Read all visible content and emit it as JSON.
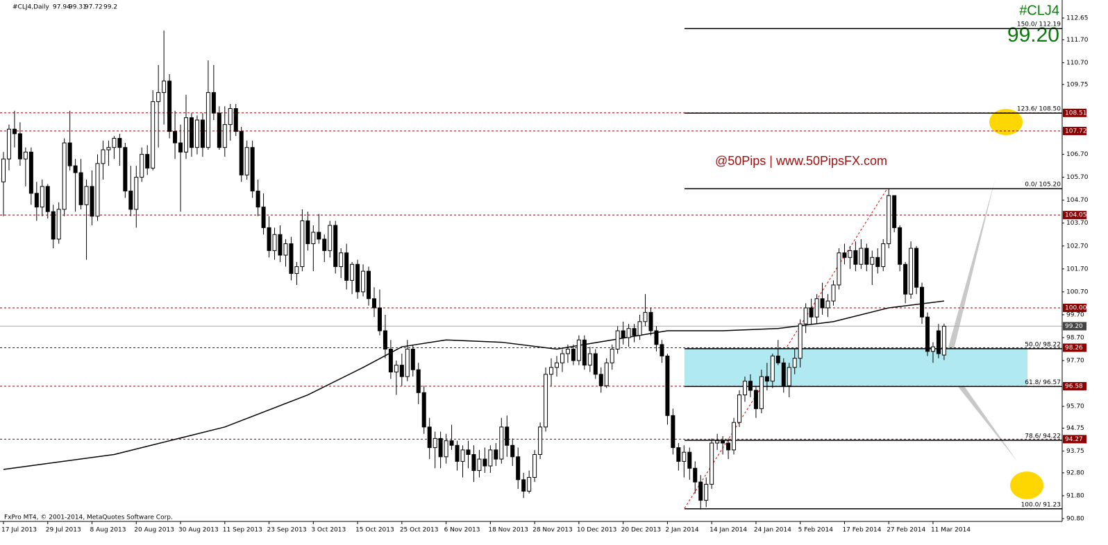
{
  "chart_data": {
    "type": "candlestick",
    "title": "#CLJ4,Daily",
    "symbol": "#CLJ4",
    "last_price": {
      "value": 99.2,
      "label": "99.20"
    },
    "watermark": "@50Pips | www.50PipsFX.com",
    "copyright": "FxPro MT4, © 2001-2014, MetaQuotes Software Corp.",
    "up_color": "#ffffff",
    "down_color": "#000000",
    "ylim": [
      90.8,
      112.65
    ],
    "yticks": [
      {
        "value": 112.65,
        "label": "112.65"
      },
      {
        "value": 111.7,
        "label": "111.70"
      },
      {
        "value": 110.7,
        "label": "110.70"
      },
      {
        "value": 109.75,
        "label": "109.75"
      },
      {
        "value": 106.7,
        "label": "106.70"
      },
      {
        "value": 105.7,
        "label": "105.70"
      },
      {
        "value": 104.7,
        "label": "104.70"
      },
      {
        "value": 103.7,
        "label": "103.70"
      },
      {
        "value": 102.7,
        "label": "102.70"
      },
      {
        "value": 101.7,
        "label": "101.70"
      },
      {
        "value": 100.7,
        "label": "100.70"
      },
      {
        "value": 99.7,
        "label": "99.70"
      },
      {
        "value": 98.7,
        "label": "98.70"
      },
      {
        "value": 97.7,
        "label": "97.70"
      },
      {
        "value": 95.7,
        "label": "95.70"
      },
      {
        "value": 94.75,
        "label": "94.75"
      },
      {
        "value": 93.75,
        "label": "93.75"
      },
      {
        "value": 92.8,
        "label": "92.80"
      },
      {
        "value": 91.8,
        "label": "91.80"
      },
      {
        "value": 90.8,
        "label": "90.80"
      }
    ],
    "xticks": [
      {
        "value": 0,
        "label": "17 Jul 2013"
      },
      {
        "value": 8,
        "label": "29 Jul 2013"
      },
      {
        "value": 16,
        "label": "8 Aug 2013"
      },
      {
        "value": 24,
        "label": "20 Aug 2013"
      },
      {
        "value": 32,
        "label": "30 Aug 2013"
      },
      {
        "value": 40,
        "label": "11 Sep 2013"
      },
      {
        "value": 48,
        "label": "23 Sep 2013"
      },
      {
        "value": 56,
        "label": "3 Oct 2013"
      },
      {
        "value": 64,
        "label": "15 Oct 2013"
      },
      {
        "value": 72,
        "label": "25 Oct 2013"
      },
      {
        "value": 80,
        "label": "6 Nov 2013"
      },
      {
        "value": 88,
        "label": "18 Nov 2013"
      },
      {
        "value": 96,
        "label": "28 Nov 2013"
      },
      {
        "value": 104,
        "label": "10 Dec 2013"
      },
      {
        "value": 112,
        "label": "20 Dec 2013"
      },
      {
        "value": 120,
        "label": "2 Jan 2014"
      },
      {
        "value": 128,
        "label": "14 Jan 2014"
      },
      {
        "value": 136,
        "label": "24 Jan 2014"
      },
      {
        "value": 144,
        "label": "5 Feb 2014"
      },
      {
        "value": 152,
        "label": "17 Feb 2014"
      },
      {
        "value": 160,
        "label": "27 Feb 2014"
      },
      {
        "value": 168,
        "label": "11 Mar 2014"
      }
    ],
    "ohlc": [
      [
        105.5,
        106.8,
        104.0,
        106.5
      ],
      [
        106.5,
        108.0,
        106.0,
        107.8
      ],
      [
        107.8,
        108.6,
        107.0,
        107.6
      ],
      [
        107.6,
        108.1,
        106.2,
        106.5
      ],
      [
        106.5,
        107.0,
        105.3,
        106.8
      ],
      [
        106.8,
        107.0,
        104.5,
        105.0
      ],
      [
        105.0,
        105.5,
        103.8,
        104.4
      ],
      [
        104.4,
        105.6,
        104.0,
        105.3
      ],
      [
        105.3,
        105.4,
        103.9,
        104.2
      ],
      [
        104.2,
        104.5,
        102.6,
        103.0
      ],
      [
        103.0,
        104.6,
        102.8,
        104.3
      ],
      [
        104.3,
        107.4,
        104.0,
        107.2
      ],
      [
        107.2,
        108.6,
        106.0,
        106.2
      ],
      [
        106.2,
        106.5,
        104.2,
        105.9
      ],
      [
        105.9,
        106.5,
        104.3,
        104.5
      ],
      [
        104.5,
        105.6,
        102.1,
        105.3
      ],
      [
        105.3,
        106.0,
        103.6,
        104.0
      ],
      [
        104.0,
        106.7,
        103.8,
        106.3
      ],
      [
        106.3,
        107.3,
        105.6,
        106.9
      ],
      [
        106.9,
        107.3,
        106.2,
        107.0
      ],
      [
        107.0,
        107.5,
        106.5,
        107.4
      ],
      [
        107.4,
        107.6,
        106.2,
        107.0
      ],
      [
        107.0,
        107.2,
        104.8,
        105.1
      ],
      [
        105.1,
        106.2,
        104.0,
        104.3
      ],
      [
        104.3,
        106.2,
        103.5,
        105.7
      ],
      [
        105.7,
        107.0,
        105.5,
        106.7
      ],
      [
        106.7,
        107.1,
        105.8,
        106.1
      ],
      [
        106.1,
        109.5,
        106.0,
        109.0
      ],
      [
        109.0,
        110.6,
        107.0,
        109.4
      ],
      [
        109.4,
        112.1,
        108.0,
        109.9
      ],
      [
        109.9,
        110.2,
        107.4,
        107.7
      ],
      [
        107.7,
        108.6,
        106.5,
        107.2
      ],
      [
        107.2,
        108.0,
        104.2,
        106.8
      ],
      [
        106.8,
        109.3,
        106.5,
        108.3
      ],
      [
        108.3,
        108.5,
        106.6,
        107.0
      ],
      [
        107.0,
        108.4,
        106.7,
        108.2
      ],
      [
        108.2,
        108.5,
        106.6,
        107.0
      ],
      [
        107.0,
        110.8,
        106.9,
        109.4
      ],
      [
        109.4,
        110.6,
        108.2,
        108.5
      ],
      [
        108.5,
        108.8,
        106.9,
        107.0
      ],
      [
        107.0,
        108.8,
        106.6,
        108.0
      ],
      [
        108.0,
        108.9,
        107.3,
        108.7
      ],
      [
        108.7,
        108.9,
        107.5,
        107.7
      ],
      [
        107.7,
        107.9,
        105.5,
        105.8
      ],
      [
        105.8,
        107.3,
        105.6,
        107.0
      ],
      [
        107.0,
        107.3,
        104.8,
        105.1
      ],
      [
        105.1,
        105.6,
        104.0,
        104.4
      ],
      [
        104.4,
        105.0,
        103.2,
        103.5
      ],
      [
        103.5,
        104.0,
        102.2,
        102.5
      ],
      [
        102.5,
        103.5,
        102.1,
        103.2
      ],
      [
        103.2,
        103.6,
        102.0,
        102.3
      ],
      [
        102.3,
        103.0,
        101.8,
        102.8
      ],
      [
        102.8,
        103.1,
        101.2,
        101.5
      ],
      [
        101.5,
        102.0,
        101.0,
        101.8
      ],
      [
        101.8,
        104.3,
        101.6,
        103.8
      ],
      [
        103.8,
        104.2,
        102.5,
        102.8
      ],
      [
        102.8,
        103.6,
        101.6,
        103.3
      ],
      [
        103.3,
        104.1,
        102.8,
        103.0
      ],
      [
        103.0,
        103.2,
        102.0,
        102.5
      ],
      [
        102.5,
        103.8,
        102.2,
        103.6
      ],
      [
        103.6,
        103.8,
        101.5,
        101.8
      ],
      [
        101.8,
        102.6,
        101.3,
        102.4
      ],
      [
        102.4,
        102.8,
        100.8,
        101.2
      ],
      [
        101.2,
        102.0,
        100.6,
        101.9
      ],
      [
        101.9,
        102.1,
        100.4,
        100.7
      ],
      [
        100.7,
        101.9,
        100.5,
        101.6
      ],
      [
        101.6,
        101.8,
        100.1,
        100.4
      ],
      [
        100.4,
        100.9,
        99.6,
        100.0
      ],
      [
        100.0,
        100.8,
        98.8,
        99.0
      ],
      [
        99.0,
        99.7,
        97.8,
        98.2
      ],
      [
        98.2,
        98.6,
        96.9,
        97.2
      ],
      [
        97.2,
        97.7,
        96.2,
        97.5
      ],
      [
        97.5,
        98.0,
        96.6,
        97.0
      ],
      [
        97.0,
        98.6,
        96.8,
        98.2
      ],
      [
        98.2,
        98.4,
        97.0,
        97.3
      ],
      [
        97.3,
        97.6,
        95.8,
        96.3
      ],
      [
        96.3,
        96.6,
        94.5,
        94.8
      ],
      [
        94.8,
        95.2,
        93.4,
        93.9
      ],
      [
        93.9,
        94.6,
        93.0,
        94.3
      ],
      [
        94.3,
        94.6,
        93.0,
        93.5
      ],
      [
        93.5,
        94.5,
        93.2,
        94.2
      ],
      [
        94.2,
        94.9,
        93.8,
        94.0
      ],
      [
        94.0,
        94.2,
        92.9,
        93.3
      ],
      [
        93.3,
        94.0,
        92.6,
        93.8
      ],
      [
        93.8,
        94.2,
        93.0,
        93.6
      ],
      [
        93.6,
        94.0,
        92.4,
        92.9
      ],
      [
        92.9,
        93.8,
        92.6,
        93.4
      ],
      [
        93.4,
        93.9,
        92.8,
        93.1
      ],
      [
        93.1,
        94.0,
        92.8,
        93.8
      ],
      [
        93.8,
        94.1,
        93.1,
        93.4
      ],
      [
        93.4,
        95.2,
        93.2,
        94.8
      ],
      [
        94.8,
        95.3,
        93.5,
        94.0
      ],
      [
        94.0,
        94.3,
        93.1,
        93.5
      ],
      [
        93.5,
        93.9,
        92.1,
        92.5
      ],
      [
        92.5,
        92.8,
        91.7,
        92.0
      ],
      [
        92.0,
        92.9,
        91.9,
        92.6
      ],
      [
        92.6,
        93.8,
        92.4,
        93.6
      ],
      [
        93.6,
        95.0,
        93.4,
        94.8
      ],
      [
        94.8,
        97.4,
        94.6,
        97.1
      ],
      [
        97.1,
        97.8,
        96.6,
        97.4
      ],
      [
        97.4,
        97.9,
        97.0,
        97.6
      ],
      [
        97.6,
        98.2,
        97.2,
        98.0
      ],
      [
        98.0,
        98.4,
        97.6,
        98.2
      ],
      [
        98.2,
        98.4,
        97.5,
        97.7
      ],
      [
        97.7,
        98.8,
        97.5,
        98.6
      ],
      [
        98.6,
        98.8,
        97.3,
        97.5
      ],
      [
        97.5,
        98.3,
        97.2,
        98.0
      ],
      [
        98.0,
        98.2,
        96.9,
        97.1
      ],
      [
        97.1,
        97.4,
        96.3,
        96.6
      ],
      [
        96.6,
        97.8,
        96.5,
        97.6
      ],
      [
        97.6,
        98.4,
        97.3,
        98.2
      ],
      [
        98.2,
        99.2,
        98.0,
        99.0
      ],
      [
        99.0,
        99.4,
        98.4,
        98.7
      ],
      [
        98.7,
        99.3,
        98.3,
        99.1
      ],
      [
        99.1,
        99.3,
        98.5,
        98.8
      ],
      [
        98.8,
        99.7,
        98.6,
        99.4
      ],
      [
        99.4,
        100.6,
        99.2,
        99.8
      ],
      [
        99.8,
        100.0,
        98.8,
        99.0
      ],
      [
        99.0,
        99.2,
        98.1,
        98.4
      ],
      [
        98.4,
        98.6,
        97.6,
        97.9
      ],
      [
        97.9,
        98.0,
        94.9,
        95.3
      ],
      [
        95.3,
        95.6,
        93.6,
        93.9
      ],
      [
        93.9,
        94.1,
        92.9,
        93.3
      ],
      [
        93.3,
        94.0,
        92.6,
        93.7
      ],
      [
        93.7,
        93.9,
        92.5,
        93.0
      ],
      [
        93.0,
        93.3,
        91.9,
        92.4
      ],
      [
        92.4,
        92.7,
        91.2,
        91.6
      ],
      [
        91.6,
        92.6,
        91.3,
        92.3
      ],
      [
        92.3,
        94.3,
        92.1,
        94.1
      ],
      [
        94.1,
        94.5,
        93.8,
        94.2
      ],
      [
        94.2,
        94.4,
        93.6,
        94.1
      ],
      [
        94.1,
        94.3,
        93.4,
        93.8
      ],
      [
        93.8,
        95.2,
        93.6,
        95.0
      ],
      [
        95.0,
        96.4,
        94.8,
        96.2
      ],
      [
        96.2,
        97.0,
        95.9,
        96.8
      ],
      [
        96.8,
        97.1,
        96.1,
        96.4
      ],
      [
        96.4,
        96.6,
        95.2,
        95.6
      ],
      [
        95.6,
        97.3,
        95.4,
        97.0
      ],
      [
        97.0,
        97.6,
        96.4,
        96.8
      ],
      [
        96.8,
        98.0,
        96.5,
        97.9
      ],
      [
        97.9,
        98.6,
        97.5,
        97.6
      ],
      [
        97.6,
        97.8,
        96.3,
        96.6
      ],
      [
        96.6,
        97.6,
        96.1,
        97.4
      ],
      [
        97.4,
        98.2,
        97.1,
        97.8
      ],
      [
        97.8,
        99.5,
        97.4,
        99.3
      ],
      [
        99.3,
        100.2,
        98.9,
        100.0
      ],
      [
        100.0,
        100.4,
        99.3,
        99.6
      ],
      [
        99.6,
        100.6,
        99.3,
        100.4
      ],
      [
        100.4,
        101.1,
        99.7,
        100.0
      ],
      [
        100.0,
        100.6,
        99.6,
        100.3
      ],
      [
        100.3,
        101.2,
        100.1,
        101.0
      ],
      [
        101.0,
        102.6,
        100.8,
        102.4
      ],
      [
        102.4,
        102.8,
        101.9,
        102.2
      ],
      [
        102.2,
        102.7,
        101.7,
        102.5
      ],
      [
        102.5,
        102.9,
        101.6,
        101.9
      ],
      [
        101.9,
        103.0,
        101.7,
        102.6
      ],
      [
        102.6,
        102.8,
        101.6,
        101.9
      ],
      [
        101.9,
        102.5,
        101.0,
        102.2
      ],
      [
        102.2,
        102.6,
        101.5,
        101.8
      ],
      [
        101.8,
        103.0,
        101.6,
        102.8
      ],
      [
        102.8,
        105.2,
        102.6,
        104.9
      ],
      [
        104.9,
        104.9,
        103.3,
        103.5
      ],
      [
        103.5,
        103.6,
        101.6,
        101.9
      ],
      [
        101.9,
        102.0,
        100.2,
        100.6
      ],
      [
        100.6,
        102.9,
        100.4,
        102.6
      ],
      [
        102.6,
        102.7,
        100.6,
        100.9
      ],
      [
        100.9,
        101.1,
        99.3,
        99.6
      ],
      [
        99.6,
        99.8,
        97.9,
        98.1
      ],
      [
        98.1,
        98.5,
        97.6,
        98.3
      ],
      [
        99.0,
        99.3,
        97.8,
        98.0
      ],
      [
        97.94,
        99.31,
        97.72,
        99.2
      ]
    ],
    "moving_average": {
      "color": "#000000",
      "x": [
        0,
        20,
        40,
        55,
        65,
        72,
        80,
        90,
        100,
        110,
        120,
        130,
        140,
        150,
        160,
        170
      ],
      "values": [
        92.95,
        93.6,
        94.8,
        96.2,
        97.4,
        98.3,
        98.6,
        98.5,
        98.2,
        98.6,
        99.0,
        99.0,
        99.1,
        99.4,
        100.0,
        100.3
      ]
    },
    "levels": [
      {
        "value": 108.51,
        "label": "108.51"
      },
      {
        "value": 107.72,
        "label": "107.72"
      },
      {
        "value": 104.05,
        "label": "104.05"
      },
      {
        "value": 100,
        "label": "100.00"
      },
      {
        "value": 98.26,
        "label": "98.26"
      },
      {
        "value": 96.58,
        "label": "96.58"
      },
      {
        "value": 94.27,
        "label": "94.27"
      }
    ],
    "level_color": "#8b0000",
    "fibonacci": [
      {
        "value": 112.19,
        "label": "150.0/ 112.19"
      },
      {
        "value": 108.5,
        "label": "123.6/ 108.50"
      },
      {
        "value": 105.2,
        "label": "0.0/ 105.20"
      },
      {
        "value": 98.22,
        "label": "50.0/ 98.22"
      },
      {
        "value": 96.57,
        "label": "61.8/ 96.57"
      },
      {
        "value": 94.22,
        "label": "78.6/ 94.22"
      },
      {
        "value": 91.23,
        "label": "100.0/ 91.23"
      }
    ]
  }
}
